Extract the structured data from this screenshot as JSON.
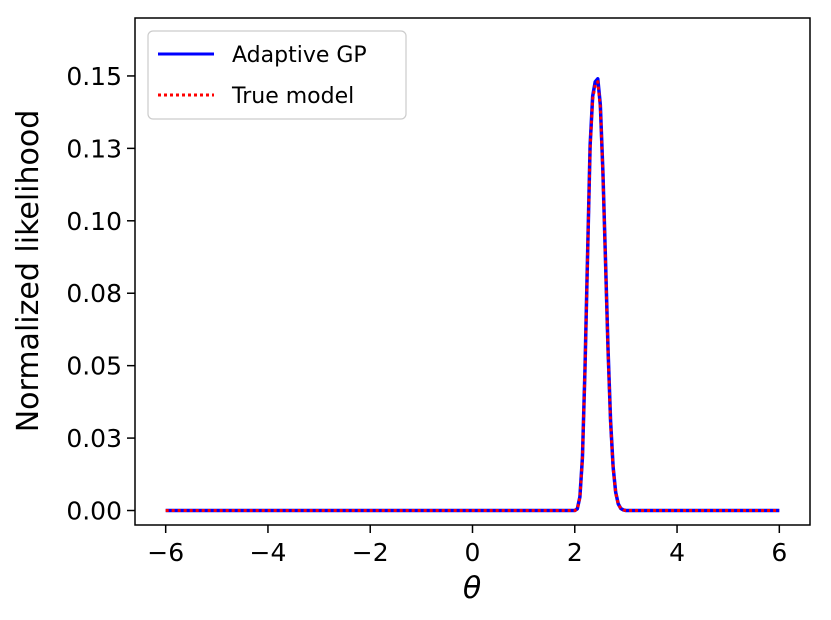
{
  "chart_data": {
    "type": "line",
    "title": "",
    "xlabel": "θ",
    "ylabel": "Normalized likelihood",
    "xlim": [
      -6.6,
      6.6
    ],
    "ylim": [
      -0.005,
      0.17
    ],
    "xticks": [
      -6,
      -4,
      -2,
      0,
      2,
      4,
      6
    ],
    "xtick_labels": [
      "−6",
      "−4",
      "−2",
      "0",
      "2",
      "4",
      "6"
    ],
    "yticks": [
      0.0,
      0.025,
      0.05,
      0.075,
      0.1,
      0.125,
      0.15
    ],
    "ytick_labels": [
      "0.00",
      "0.03",
      "0.05",
      "0.08",
      "0.10",
      "0.13",
      "0.15"
    ],
    "grid": false,
    "legend_position": "top-left",
    "series": [
      {
        "name": "Adaptive GP",
        "color": "#0000ff",
        "style": "solid",
        "x": [
          -6.0,
          -2.0,
          0.0,
          2.0,
          2.05,
          2.1,
          2.15,
          2.2,
          2.25,
          2.3,
          2.35,
          2.4,
          2.45,
          2.5,
          2.55,
          2.6,
          2.65,
          2.7,
          2.75,
          2.8,
          2.85,
          2.9,
          2.95,
          3.0,
          4.0,
          6.0
        ],
        "y": [
          0.0,
          0.0,
          0.0,
          0.0,
          0.0006,
          0.0047,
          0.0183,
          0.0491,
          0.088,
          0.126,
          0.143,
          0.148,
          0.149,
          0.14,
          0.117,
          0.087,
          0.056,
          0.031,
          0.015,
          0.0063,
          0.0023,
          0.0007,
          0.0002,
          0.0,
          0.0,
          0.0
        ]
      },
      {
        "name": "True model",
        "color": "#ff0000",
        "style": "dotted",
        "x": [
          -6.0,
          -2.0,
          0.0,
          2.0,
          2.05,
          2.1,
          2.15,
          2.2,
          2.25,
          2.3,
          2.35,
          2.4,
          2.45,
          2.5,
          2.55,
          2.6,
          2.65,
          2.7,
          2.75,
          2.8,
          2.85,
          2.9,
          2.95,
          3.0,
          4.0,
          6.0
        ],
        "y": [
          0.0,
          0.0,
          0.0,
          0.0,
          0.0005,
          0.0045,
          0.018,
          0.0485,
          0.087,
          0.125,
          0.142,
          0.147,
          0.148,
          0.139,
          0.116,
          0.086,
          0.055,
          0.03,
          0.0145,
          0.006,
          0.0022,
          0.0007,
          0.0002,
          0.0,
          0.0,
          0.0
        ]
      }
    ]
  }
}
